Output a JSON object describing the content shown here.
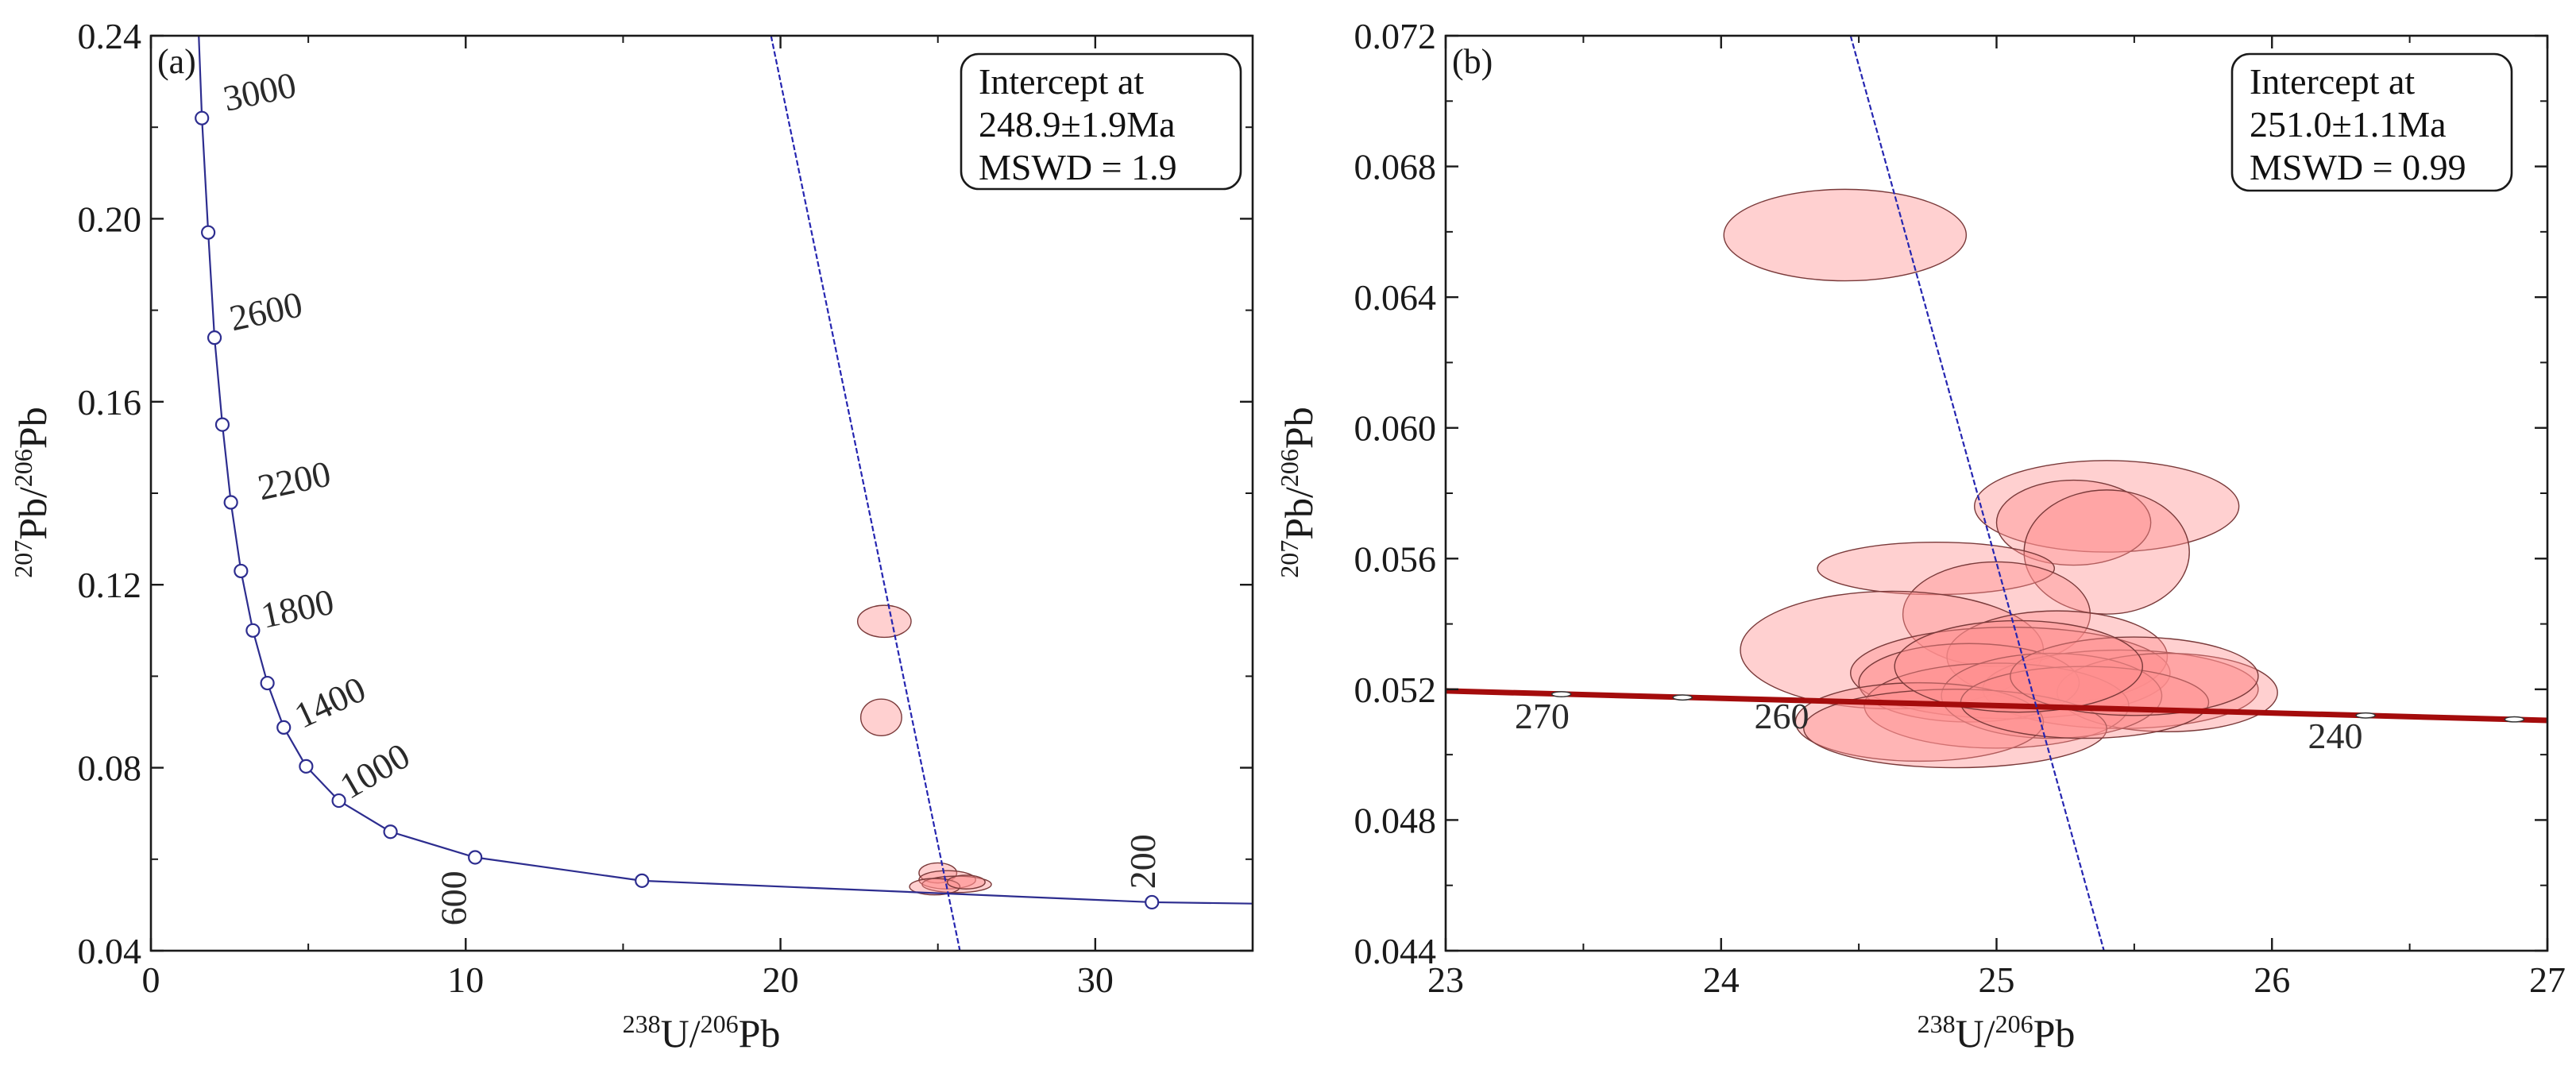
{
  "chart_data": [
    {
      "type": "scatter",
      "panel_label": "(a)",
      "subtype": "Tera-Wasserburg concordia",
      "xlabel": {
        "sup1": "238",
        "el1": "U/",
        "sup2": "206",
        "el2": "Pb"
      },
      "ylabel": {
        "sup1": "207",
        "el1": "Pb/",
        "sup2": "206",
        "el2": "Pb"
      },
      "xlim": [
        0,
        35
      ],
      "ylim": [
        0.04,
        0.24
      ],
      "xticks": [
        0,
        10,
        20,
        30
      ],
      "yticks": [
        0.04,
        0.08,
        0.12,
        0.16,
        0.2,
        0.24
      ],
      "ytick_labels": [
        "0.04",
        "0.08",
        "0.12",
        "0.16",
        "0.20",
        "0.24"
      ],
      "xtick_labels": [
        "0",
        "10",
        "20",
        "30"
      ],
      "annotation": {
        "line1": "Intercept at",
        "line2": "248.9±1.9Ma",
        "line3": "MSWD = 1.9"
      },
      "concordia_points": [
        {
          "x": 1.62,
          "y": 0.222
        },
        {
          "x": 1.82,
          "y": 0.197
        },
        {
          "x": 2.02,
          "y": 0.174
        },
        {
          "x": 2.27,
          "y": 0.155
        },
        {
          "x": 2.54,
          "y": 0.138
        },
        {
          "x": 2.86,
          "y": 0.123
        },
        {
          "x": 3.24,
          "y": 0.11
        },
        {
          "x": 3.7,
          "y": 0.0985
        },
        {
          "x": 4.22,
          "y": 0.0888
        },
        {
          "x": 4.93,
          "y": 0.0803
        },
        {
          "x": 5.97,
          "y": 0.0728
        },
        {
          "x": 7.61,
          "y": 0.066
        },
        {
          "x": 10.3,
          "y": 0.0604
        },
        {
          "x": 15.6,
          "y": 0.0553
        },
        {
          "x": 31.8,
          "y": 0.0506
        }
      ],
      "age_labels": [
        {
          "text": "3000",
          "x": 2.4,
          "y": 0.2235
        },
        {
          "text": "2600",
          "x": 2.6,
          "y": 0.1755
        },
        {
          "text": "2200",
          "x": 3.5,
          "y": 0.1385
        },
        {
          "text": "1800",
          "x": 3.6,
          "y": 0.1105
        },
        {
          "text": "1400",
          "x": 4.8,
          "y": 0.0885
        },
        {
          "text": "1000",
          "x": 6.3,
          "y": 0.073
        },
        {
          "text": "600",
          "x": 10.0,
          "y": 0.0455
        },
        {
          "text": "200",
          "x": 31.9,
          "y": 0.0535
        }
      ],
      "discordia_line": [
        [
          19.7,
          0.24
        ],
        [
          25.7,
          0.04
        ]
      ],
      "data_ellipses": [
        {
          "x": 23.3,
          "y": 0.112,
          "rx": 0.85,
          "ry": 0.0035
        },
        {
          "x": 23.2,
          "y": 0.091,
          "rx": 0.65,
          "ry": 0.004
        },
        {
          "x": 25.0,
          "y": 0.057,
          "rx": 0.6,
          "ry": 0.0022
        },
        {
          "x": 25.3,
          "y": 0.0555,
          "rx": 0.9,
          "ry": 0.002
        },
        {
          "x": 25.6,
          "y": 0.0545,
          "rx": 1.1,
          "ry": 0.0018
        },
        {
          "x": 24.9,
          "y": 0.054,
          "rx": 0.8,
          "ry": 0.0018
        },
        {
          "x": 25.9,
          "y": 0.055,
          "rx": 0.6,
          "ry": 0.0015
        }
      ]
    },
    {
      "type": "scatter",
      "panel_label": "(b)",
      "subtype": "Tera-Wasserburg concordia (zoom)",
      "xlabel": {
        "sup1": "238",
        "el1": "U/",
        "sup2": "206",
        "el2": "Pb"
      },
      "ylabel": {
        "sup1": "207",
        "el1": "Pb/",
        "sup2": "206",
        "el2": "Pb"
      },
      "xlim": [
        23,
        27
      ],
      "ylim": [
        0.044,
        0.072
      ],
      "xticks": [
        23,
        24,
        25,
        26,
        27
      ],
      "xtick_labels": [
        "23",
        "24",
        "25",
        "26",
        "27"
      ],
      "yticks": [
        0.044,
        0.048,
        0.052,
        0.056,
        0.06,
        0.064,
        0.068,
        0.072
      ],
      "ytick_labels": [
        "0.044",
        "0.048",
        "0.052",
        "0.056",
        "0.060",
        "0.064",
        "0.068",
        "0.072"
      ],
      "annotation": {
        "line1": "Intercept at",
        "line2": "251.0±1.1Ma",
        "line3": "MSWD = 0.99"
      },
      "concordia_line": [
        [
          23.0,
          0.05195
        ],
        [
          27.0,
          0.05105
        ]
      ],
      "concordia_points": [
        {
          "x": 23.42,
          "y": 0.05185
        },
        {
          "x": 23.86,
          "y": 0.05175
        },
        {
          "x": 26.34,
          "y": 0.0512
        },
        {
          "x": 26.88,
          "y": 0.05108
        }
      ],
      "age_labels": [
        {
          "text": "270",
          "x": 23.35,
          "y": 0.0508
        },
        {
          "text": "260",
          "x": 24.22,
          "y": 0.0508
        },
        {
          "text": "240",
          "x": 26.23,
          "y": 0.0502
        }
      ],
      "discordia_line": [
        [
          24.47,
          0.072
        ],
        [
          25.39,
          0.044
        ]
      ],
      "data_ellipses": [
        {
          "x": 24.45,
          "y": 0.0659,
          "rx": 0.44,
          "ry": 0.0014
        },
        {
          "x": 25.4,
          "y": 0.0576,
          "rx": 0.48,
          "ry": 0.0014
        },
        {
          "x": 25.28,
          "y": 0.0571,
          "rx": 0.28,
          "ry": 0.0013
        },
        {
          "x": 25.4,
          "y": 0.0562,
          "rx": 0.3,
          "ry": 0.0019
        },
        {
          "x": 24.78,
          "y": 0.0557,
          "rx": 0.43,
          "ry": 0.0008
        },
        {
          "x": 25.0,
          "y": 0.0543,
          "rx": 0.34,
          "ry": 0.0016
        },
        {
          "x": 24.62,
          "y": 0.0532,
          "rx": 0.55,
          "ry": 0.0018
        },
        {
          "x": 25.22,
          "y": 0.053,
          "rx": 0.4,
          "ry": 0.0014
        },
        {
          "x": 25.05,
          "y": 0.0525,
          "rx": 0.58,
          "ry": 0.0014
        },
        {
          "x": 25.45,
          "y": 0.052,
          "rx": 0.5,
          "ry": 0.0012
        },
        {
          "x": 25.62,
          "y": 0.0519,
          "rx": 0.4,
          "ry": 0.0012
        },
        {
          "x": 24.9,
          "y": 0.0522,
          "rx": 0.4,
          "ry": 0.0012
        },
        {
          "x": 25.0,
          "y": 0.0515,
          "rx": 0.48,
          "ry": 0.0013
        },
        {
          "x": 25.2,
          "y": 0.0518,
          "rx": 0.4,
          "ry": 0.0013
        },
        {
          "x": 24.72,
          "y": 0.051,
          "rx": 0.45,
          "ry": 0.0012
        },
        {
          "x": 24.85,
          "y": 0.0508,
          "rx": 0.55,
          "ry": 0.0012
        },
        {
          "x": 25.32,
          "y": 0.0516,
          "rx": 0.45,
          "ry": 0.0011
        },
        {
          "x": 25.5,
          "y": 0.0524,
          "rx": 0.45,
          "ry": 0.0012
        },
        {
          "x": 25.08,
          "y": 0.0527,
          "rx": 0.45,
          "ry": 0.0014
        }
      ]
    }
  ]
}
